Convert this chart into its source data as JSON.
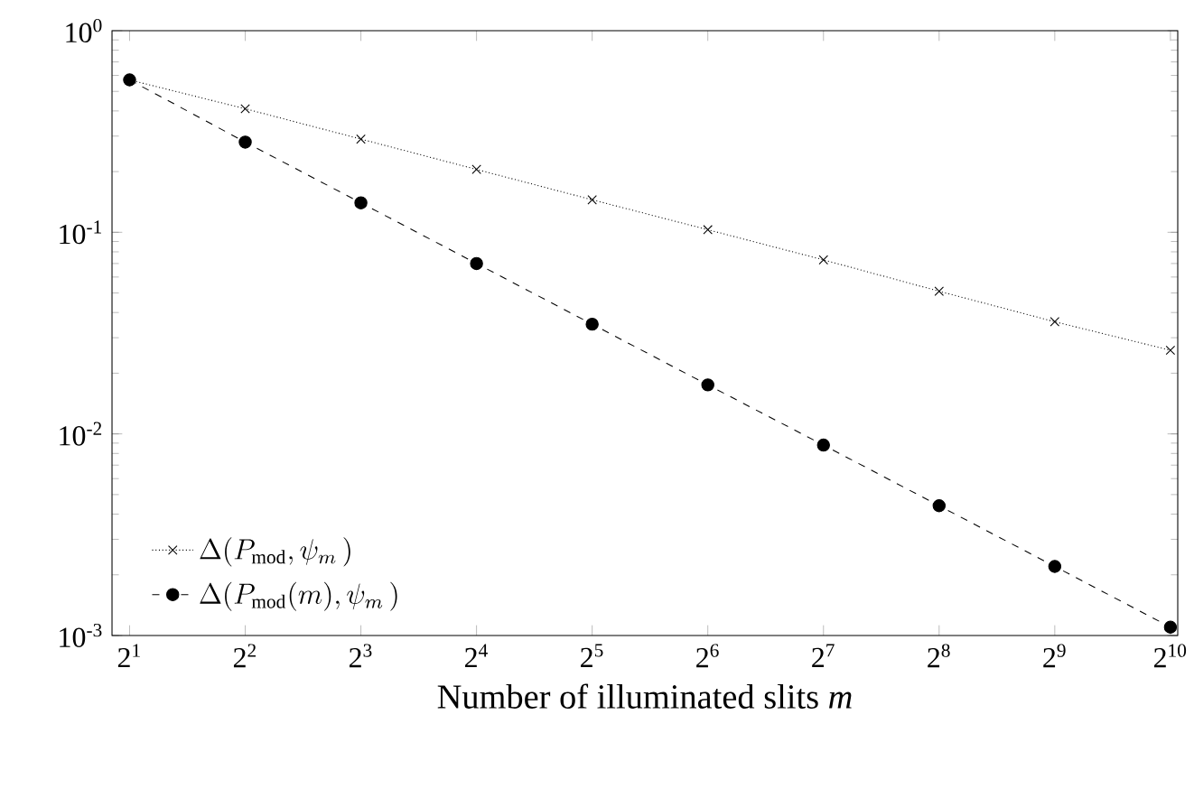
{
  "chart_data": {
    "type": "line",
    "xlabel": "Number of illuminated slits *m*",
    "log": "xy",
    "legend": "bottom left",
    "grid": false,
    "x": [
      2,
      4,
      8,
      16,
      32,
      64,
      128,
      256,
      512,
      1024
    ],
    "xlim": [
      1.8,
      1070
    ],
    "ylim": [
      0.001,
      1
    ],
    "xticks": [
      {
        "value": 2,
        "label": "2$^{1}$"
      },
      {
        "value": 4,
        "label": "2$^{2}$"
      },
      {
        "value": 8,
        "label": "2$^{3}$"
      },
      {
        "value": 16,
        "label": "2$^{4}$"
      },
      {
        "value": 32,
        "label": "2$^{5}$"
      },
      {
        "value": 64,
        "label": "2$^{6}$"
      },
      {
        "value": 128,
        "label": "2$^{7}$"
      },
      {
        "value": 256,
        "label": "2$^{8}$"
      },
      {
        "value": 512,
        "label": "2$^{9}$"
      },
      {
        "value": 1024,
        "label": "2$^{10}$"
      }
    ],
    "yticks": [
      {
        "value": 0.001,
        "label": "10$^{-3}$"
      },
      {
        "value": 0.01,
        "label": "10$^{-2}$"
      },
      {
        "value": 0.1,
        "label": "10$^{-1}$"
      },
      {
        "value": 1,
        "label": "10$^{0}$"
      }
    ],
    "series": [
      {
        "name": "\\Delta(P_{\\mathrm{mod}},\\psi_m\\,)",
        "color": "#000000",
        "marker": "cross",
        "line_style": "dotted",
        "values": [
          0.57,
          0.41,
          0.29,
          0.205,
          0.145,
          0.103,
          0.073,
          0.051,
          0.036,
          0.026
        ]
      },
      {
        "name": "\\Delta(P_{\\mathrm{mod}}(m),\\psi_m\\,)",
        "color": "#000000",
        "marker": "circle",
        "line_style": "dashed",
        "values": [
          0.57,
          0.28,
          0.14,
          0.07,
          0.035,
          0.0175,
          0.0088,
          0.0044,
          0.0022,
          0.0011
        ]
      }
    ]
  }
}
